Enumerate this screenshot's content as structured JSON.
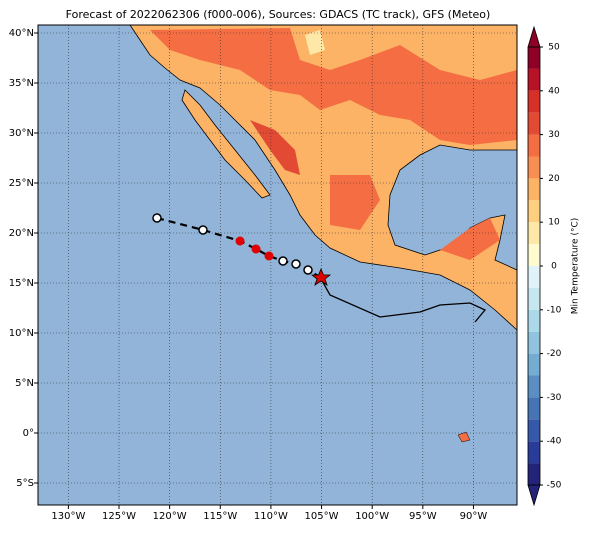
{
  "title": "Forecast of 2022062306 (f000-006), Sources: GDACS (TC track), GFS (Meteo)",
  "map": {
    "xlim": [
      -133,
      -85.7
    ],
    "ylim": [
      -7.2,
      40.8
    ],
    "xticks": [
      {
        "value": -130,
        "label": "130°W"
      },
      {
        "value": -125,
        "label": "125°W"
      },
      {
        "value": -120,
        "label": "120°W"
      },
      {
        "value": -115,
        "label": "115°W"
      },
      {
        "value": -110,
        "label": "110°W"
      },
      {
        "value": -105,
        "label": "105°W"
      },
      {
        "value": -100,
        "label": "100°W"
      },
      {
        "value": -95,
        "label": "95°W"
      },
      {
        "value": -90,
        "label": "90°W"
      }
    ],
    "yticks": [
      {
        "value": -5,
        "label": "5°S"
      },
      {
        "value": 0,
        "label": "0°"
      },
      {
        "value": 5,
        "label": "5°N"
      },
      {
        "value": 10,
        "label": "10°N"
      },
      {
        "value": 15,
        "label": "15°N"
      },
      {
        "value": 20,
        "label": "20°N"
      },
      {
        "value": 25,
        "label": "25°N"
      },
      {
        "value": 30,
        "label": "30°N"
      },
      {
        "value": 35,
        "label": "35°N"
      },
      {
        "value": 40,
        "label": "40°N"
      }
    ],
    "grid": true,
    "colorbar": {
      "label": "Min Temperature (°C)",
      "lim": [
        -50,
        50
      ],
      "ticks": [
        -50,
        -40,
        -30,
        -20,
        -10,
        0,
        10,
        20,
        30,
        40,
        50
      ],
      "colors": [
        "#23237a",
        "#2a3c9a",
        "#3658a8",
        "#4575b4",
        "#5b8fc3",
        "#74add1",
        "#90c3dd",
        "#abd9e9",
        "#c6e6f0",
        "#e0f3f8",
        "#fefbd0",
        "#fee8a8",
        "#fdcf7f",
        "#fdb366",
        "#f98e52",
        "#f46d43",
        "#e34a33",
        "#d73027",
        "#b81226",
        "#8e0026"
      ]
    }
  }
}
